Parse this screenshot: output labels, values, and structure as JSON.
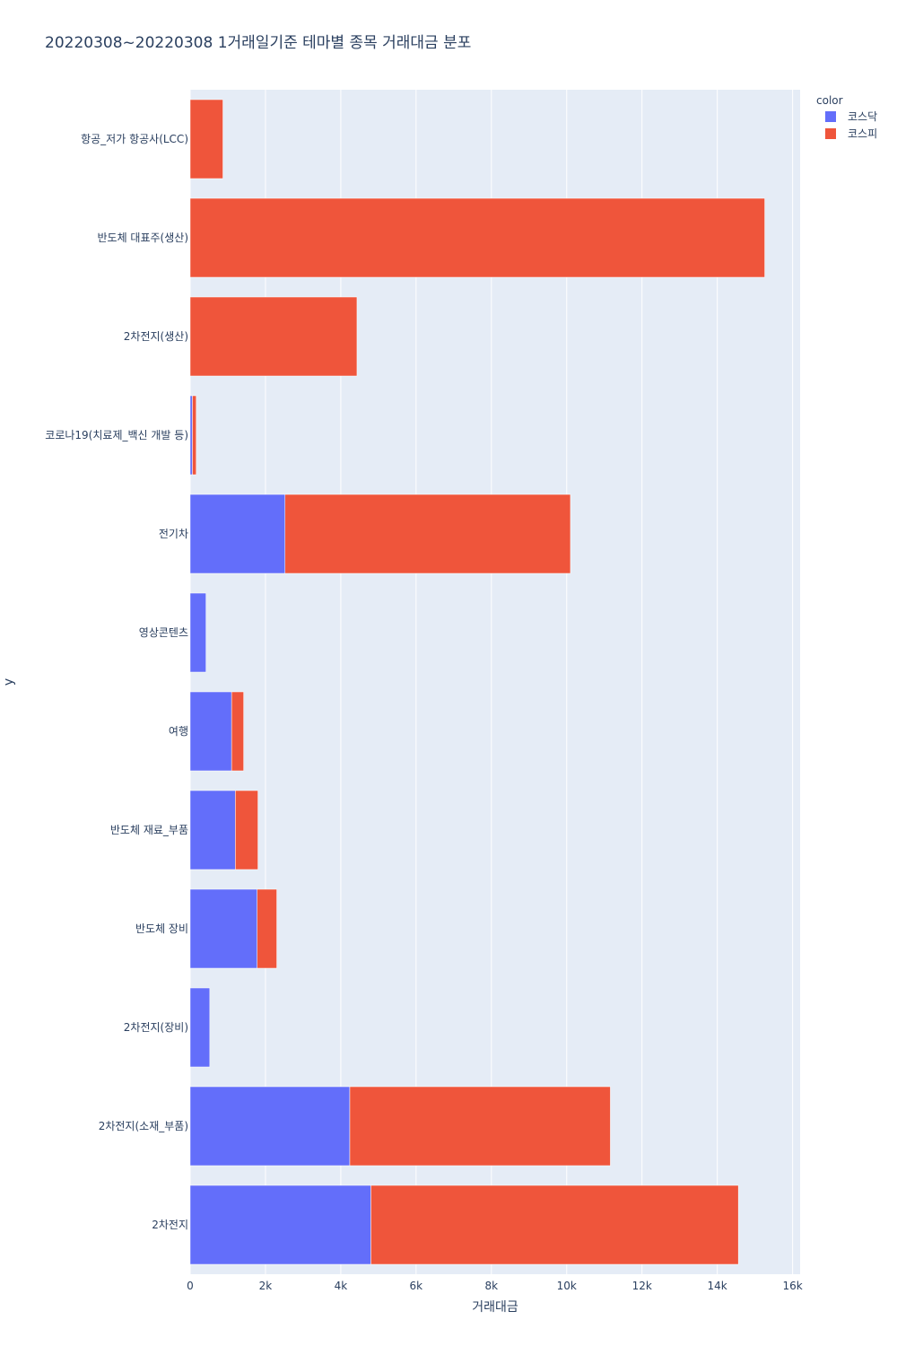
{
  "chart_data": {
    "type": "bar",
    "orientation": "horizontal",
    "barmode": "stack",
    "title": "20220308~20220308 1거래일기준 테마별 종목 거래대금 분포",
    "xlabel": "거래대금",
    "ylabel": "y",
    "xlim": [
      0,
      16200
    ],
    "xticks": [
      {
        "value": 0,
        "label": "0"
      },
      {
        "value": 2000,
        "label": "2k"
      },
      {
        "value": 4000,
        "label": "4k"
      },
      {
        "value": 6000,
        "label": "6k"
      },
      {
        "value": 8000,
        "label": "8k"
      },
      {
        "value": 10000,
        "label": "10k"
      },
      {
        "value": 12000,
        "label": "12k"
      },
      {
        "value": 14000,
        "label": "14k"
      },
      {
        "value": 16000,
        "label": "16k"
      }
    ],
    "grid": true,
    "legend": {
      "title": "color",
      "position": "top-right"
    },
    "categories": [
      "항공_저가 항공사(LCC)",
      "반도체 대표주(생산)",
      "2차전지(생산)",
      "코로나19(치료제_백신 개발 등)",
      "전기차",
      "영상콘텐츠",
      "여행",
      "반도체 재료_부품",
      "반도체 장비",
      "2차전지(장비)",
      "2차전지(소재_부품)",
      "2차전지"
    ],
    "series": [
      {
        "name": "코스닥",
        "color": "#636efa",
        "values": [
          0,
          0,
          0,
          60,
          2520,
          420,
          1100,
          1200,
          1780,
          520,
          4240,
          4800
        ]
      },
      {
        "name": "코스피",
        "color": "#ef553b",
        "values": [
          870,
          15260,
          4430,
          100,
          7580,
          0,
          320,
          600,
          520,
          0,
          6920,
          9760
        ]
      }
    ]
  }
}
